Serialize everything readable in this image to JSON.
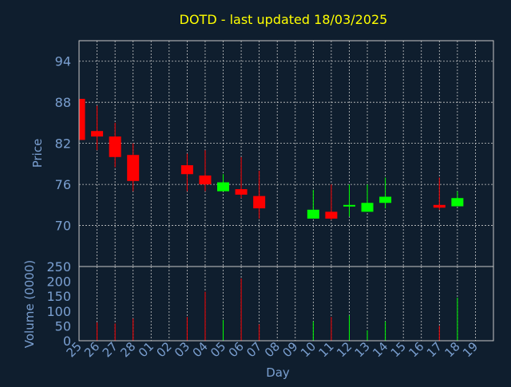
{
  "chart_data": {
    "type": "candlestick",
    "title": "DOTD - last updated 18/03/2025",
    "xlabel": "Day",
    "price_ylabel": "Price",
    "volume_ylabel": "Volume (0000)",
    "price_ylim": [
      64,
      97
    ],
    "price_ticks": [
      94,
      88,
      82,
      76,
      70
    ],
    "volume_ylim": [
      0,
      250
    ],
    "volume_ticks": [
      250,
      200,
      150,
      100,
      50,
      0
    ],
    "grid": true,
    "colors": {
      "background": "#0f1e2e",
      "plot_border": "#c8c8c8",
      "grid": "#c8c8c8",
      "title": "#ffff00",
      "axis_text": "#7a9fd0",
      "up": "#00ff00",
      "down": "#ff0000"
    },
    "x_ticks": [
      "25",
      "26",
      "27",
      "28",
      "01",
      "02",
      "03",
      "04",
      "05",
      "06",
      "07",
      "08",
      "09",
      "10",
      "11",
      "12",
      "13",
      "14",
      "15",
      "16",
      "17",
      "18",
      "19"
    ],
    "candles": [
      {
        "day": "25",
        "open": 88.5,
        "high": 88.5,
        "low": 82.5,
        "close": 82.5,
        "volume": 0
      },
      {
        "day": "26",
        "open": 83.8,
        "high": 87.5,
        "low": 81.0,
        "close": 83.0,
        "volume": 62
      },
      {
        "day": "27",
        "open": 83.0,
        "high": 85.0,
        "low": 78.5,
        "close": 80.0,
        "volume": 58
      },
      {
        "day": "28",
        "open": 80.3,
        "high": 82.0,
        "low": 75.0,
        "close": 76.5,
        "volume": 75
      },
      {
        "day": "03",
        "open": 78.8,
        "high": 80.5,
        "low": 75.0,
        "close": 77.5,
        "volume": 80
      },
      {
        "day": "04",
        "open": 77.3,
        "high": 81.0,
        "low": 75.0,
        "close": 76.0,
        "volume": 165
      },
      {
        "day": "05",
        "open": 75.0,
        "high": 77.5,
        "low": 75.0,
        "close": 76.3,
        "volume": 70
      },
      {
        "day": "06",
        "open": 75.3,
        "high": 80.0,
        "low": 74.0,
        "close": 74.5,
        "volume": 210
      },
      {
        "day": "07",
        "open": 74.3,
        "high": 78.0,
        "low": 71.0,
        "close": 72.5,
        "volume": 55
      },
      {
        "day": "10",
        "open": 71.0,
        "high": 75.2,
        "low": 71.0,
        "close": 72.3,
        "volume": 65
      },
      {
        "day": "11",
        "open": 72.0,
        "high": 76.0,
        "low": 70.8,
        "close": 71.0,
        "volume": 80
      },
      {
        "day": "12",
        "open": 72.8,
        "high": 76.0,
        "low": 71.3,
        "close": 73.0,
        "volume": 85
      },
      {
        "day": "13",
        "open": 72.0,
        "high": 76.0,
        "low": 72.0,
        "close": 73.3,
        "volume": 35
      },
      {
        "day": "14",
        "open": 73.3,
        "high": 77.0,
        "low": 72.5,
        "close": 74.2,
        "volume": 65
      },
      {
        "day": "17",
        "open": 73.0,
        "high": 77.0,
        "low": 72.3,
        "close": 72.6,
        "volume": 50
      },
      {
        "day": "18",
        "open": 72.8,
        "high": 75.0,
        "low": 72.8,
        "close": 74.0,
        "volume": 145
      }
    ]
  }
}
